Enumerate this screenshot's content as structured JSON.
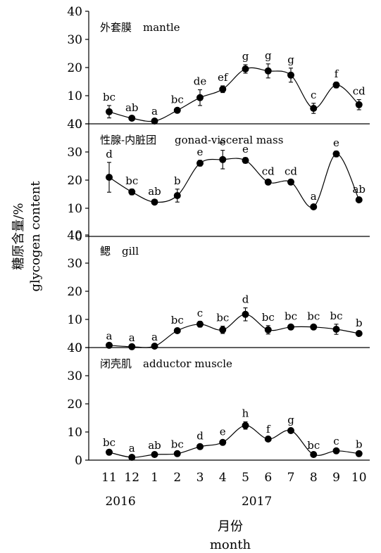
{
  "chart_data": {
    "type": "line",
    "ylabel_cn": "糖原含量/%",
    "ylabel_en": "glycogen content",
    "xlabel_cn": "月份",
    "xlabel_en": "month",
    "x_ticks": [
      "11",
      "12",
      "1",
      "2",
      "3",
      "4",
      "5",
      "6",
      "7",
      "8",
      "9",
      "10"
    ],
    "year_labels": [
      {
        "text": "2016",
        "at_month_index": 0.5
      },
      {
        "text": "2017",
        "at_month_index": 6.5
      }
    ],
    "ylim": [
      0,
      40
    ],
    "y_ticks": [
      0,
      10,
      20,
      30,
      40
    ],
    "panels": [
      {
        "title_cn": "外套膜",
        "title_en": "mantle",
        "values": [
          4.3,
          2.0,
          1.0,
          4.8,
          9.3,
          12.3,
          19.5,
          18.8,
          17.3,
          5.5,
          13.8,
          6.8
        ],
        "errors": [
          2.2,
          0.8,
          0.5,
          0.8,
          2.8,
          1.2,
          1.5,
          2.5,
          2.5,
          1.8,
          1.0,
          1.8
        ],
        "letters": [
          "bc",
          "ab",
          "a",
          "bc",
          "de",
          "ef",
          "g",
          "g",
          "g",
          "c",
          "f",
          "cd"
        ]
      },
      {
        "title_cn": "性腺-内脏团",
        "title_en": "gonad-visceral mass",
        "values": [
          21.0,
          15.8,
          12.2,
          14.5,
          26.0,
          27.3,
          27.0,
          19.3,
          19.3,
          10.5,
          29.3,
          13.0
        ],
        "errors": [
          5.3,
          1.0,
          0.8,
          2.3,
          1.0,
          3.3,
          1.0,
          0.8,
          0.8,
          0.8,
          1.0,
          0.8
        ],
        "letters": [
          "d",
          "bc",
          "ab",
          "b",
          "e",
          "e",
          "e",
          "cd",
          "cd",
          "a",
          "e",
          "ab"
        ]
      },
      {
        "title_cn": "鳃",
        "title_en": "gill",
        "values": [
          0.8,
          0.3,
          0.5,
          6.0,
          8.3,
          6.3,
          11.8,
          6.3,
          7.3,
          7.3,
          6.5,
          5.0
        ],
        "errors": [
          0.3,
          0.2,
          0.3,
          0.8,
          1.0,
          1.3,
          2.3,
          1.5,
          0.8,
          0.8,
          1.8,
          0.8
        ],
        "letters": [
          "a",
          "a",
          "a",
          "bc",
          "c",
          "bc",
          "d",
          "bc",
          "bc",
          "bc",
          "bc",
          "b"
        ]
      },
      {
        "title_cn": "闭壳肌",
        "title_en": "adductor muscle",
        "values": [
          2.8,
          1.0,
          2.0,
          2.3,
          4.8,
          6.3,
          12.3,
          7.5,
          10.5,
          2.0,
          3.3,
          2.3
        ],
        "errors": [
          0.5,
          0.3,
          0.3,
          0.3,
          0.8,
          0.8,
          1.3,
          0.5,
          0.8,
          0.3,
          0.5,
          0.3
        ],
        "letters": [
          "bc",
          "a",
          "ab",
          "bc",
          "d",
          "e",
          "h",
          "f",
          "g",
          "bc",
          "c",
          "b"
        ]
      }
    ]
  }
}
